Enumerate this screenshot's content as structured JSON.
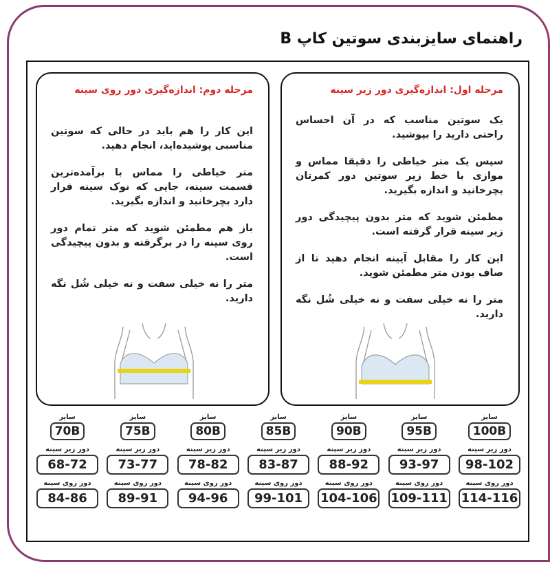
{
  "title": "راهنمای سایزبندی سوتین کاپ B",
  "colors": {
    "frame": "#8a3a72",
    "heading": "#d42a2a",
    "tape": "#e8d21a"
  },
  "step1": {
    "heading": "مرحله اول: اندازه‌گیری دور زیر سینه",
    "paragraphs": [
      "یک سوتین مناسب که در آن احساس راحتی دارید را بپوشید.",
      "سپس یک متر خیاطی را دقیقا مماس و موازی با خط زیر سوتین دور کمرتان بچرخانید و اندازه بگیرید.",
      "مطمئن شوید که متر بدون پیچیدگی دور زیر سینه قرار گرفته است.",
      "این کار را مقابل آیینه انجام دهید تا از صاف بودن متر مطمئن شوید.",
      "متر را نه خیلی سفت و نه خیلی شُل نگه دارید."
    ]
  },
  "step2": {
    "heading": "مرحله دوم: اندازه‌گیری دور روی سینه",
    "paragraphs": [
      "این کار را هم باید در حالی که سوتین مناسبی پوشیده‌اید، انجام دهید.",
      "متر خیاطی را مماس با برآمده‌ترین قسمت سینه، جایی که نوک سینه قرار دارد بچرخانید و اندازه بگیرید.",
      "باز هم مطمئن شوید که متر تمام دور روی سینه را در برگرفته و بدون پیچیدگی است.",
      "متر را نه خیلی سفت و نه خیلی شُل نگه دارید."
    ]
  },
  "labels": {
    "size": "سایز",
    "underbust": "دور زیر سینه",
    "bust": "دور روی سینه"
  },
  "sizes": [
    {
      "size": "100B",
      "underbust": "98-102",
      "bust": "114-116"
    },
    {
      "size": "95B",
      "underbust": "93-97",
      "bust": "109-111"
    },
    {
      "size": "90B",
      "underbust": "88-92",
      "bust": "104-106"
    },
    {
      "size": "85B",
      "underbust": "83-87",
      "bust": "99-101"
    },
    {
      "size": "80B",
      "underbust": "78-82",
      "bust": "94-96"
    },
    {
      "size": "75B",
      "underbust": "73-77",
      "bust": "89-91"
    },
    {
      "size": "70B",
      "underbust": "68-72",
      "bust": "84-86"
    }
  ]
}
